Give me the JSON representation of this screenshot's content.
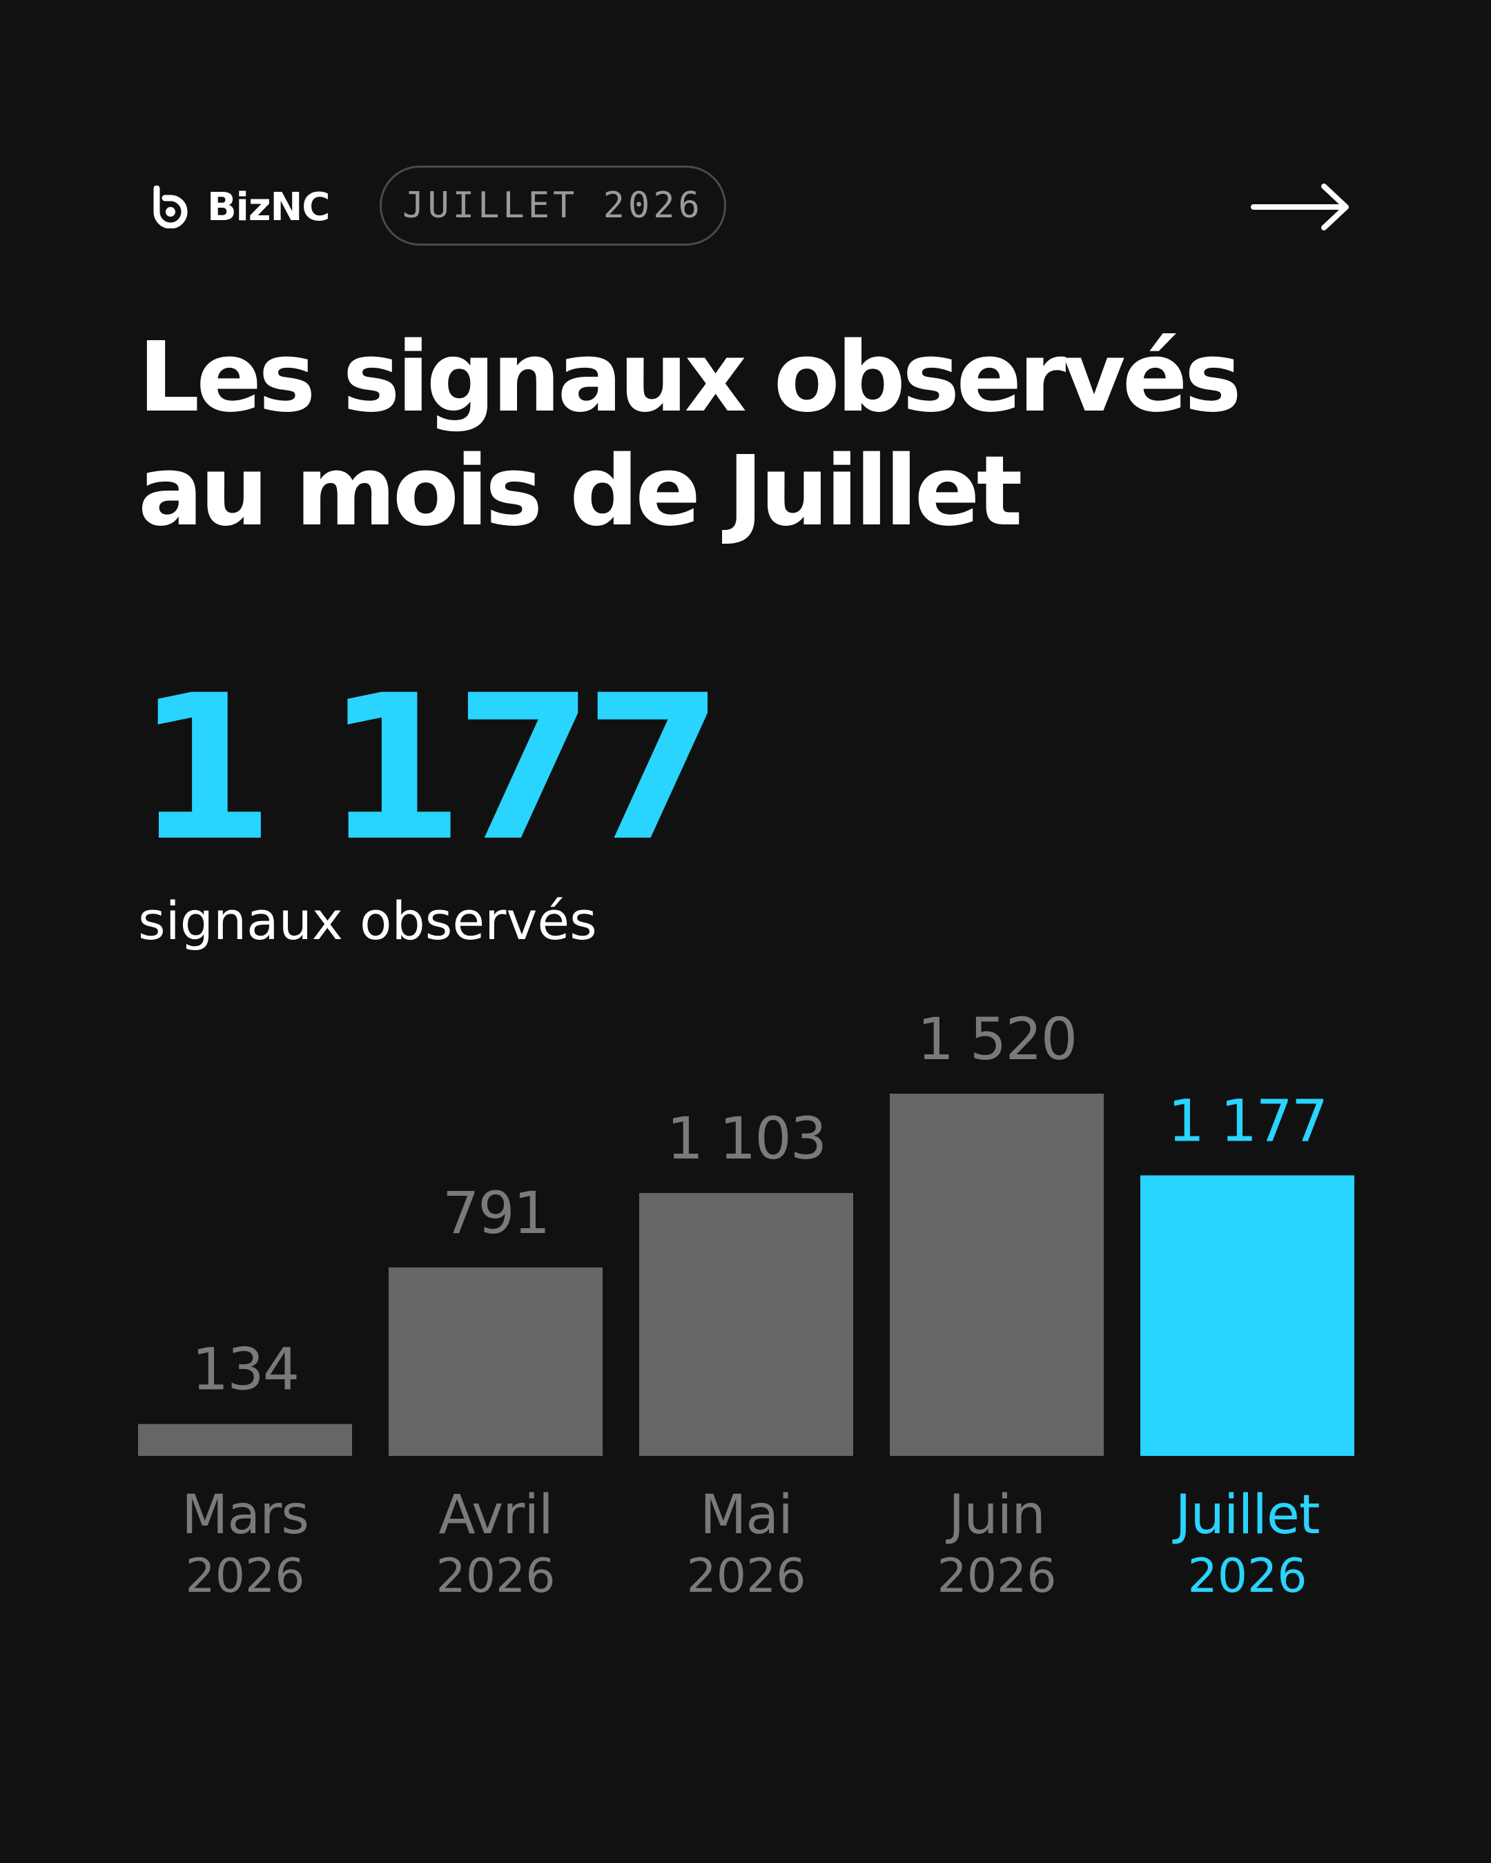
{
  "brand": {
    "name": "BizNC",
    "icon": "biznc-logo-icon"
  },
  "header": {
    "period_label": "JUILLET 2026",
    "next_icon": "arrow-right-icon"
  },
  "title": {
    "line1": "Les signaux observés",
    "line2": "au mois de Juillet"
  },
  "highlight": {
    "value": "1 177",
    "caption": "signaux observés"
  },
  "colors": {
    "background": "#111111",
    "accent": "#29d4ff",
    "bar": "#666666",
    "muted": "#7a7a7a",
    "text": "#ffffff"
  },
  "chart_data": {
    "type": "bar",
    "categories": [
      "Mars",
      "Avril",
      "Mai",
      "Juin",
      "Juillet"
    ],
    "category_years": [
      "2026",
      "2026",
      "2026",
      "2026",
      "2026"
    ],
    "values": [
      134,
      791,
      1103,
      1520,
      1177
    ],
    "value_labels": [
      "134",
      "791",
      "1 103",
      "1 520",
      "1 177"
    ],
    "highlighted_index": 4,
    "title": "",
    "xlabel": "",
    "ylabel": "",
    "grid": false
  }
}
